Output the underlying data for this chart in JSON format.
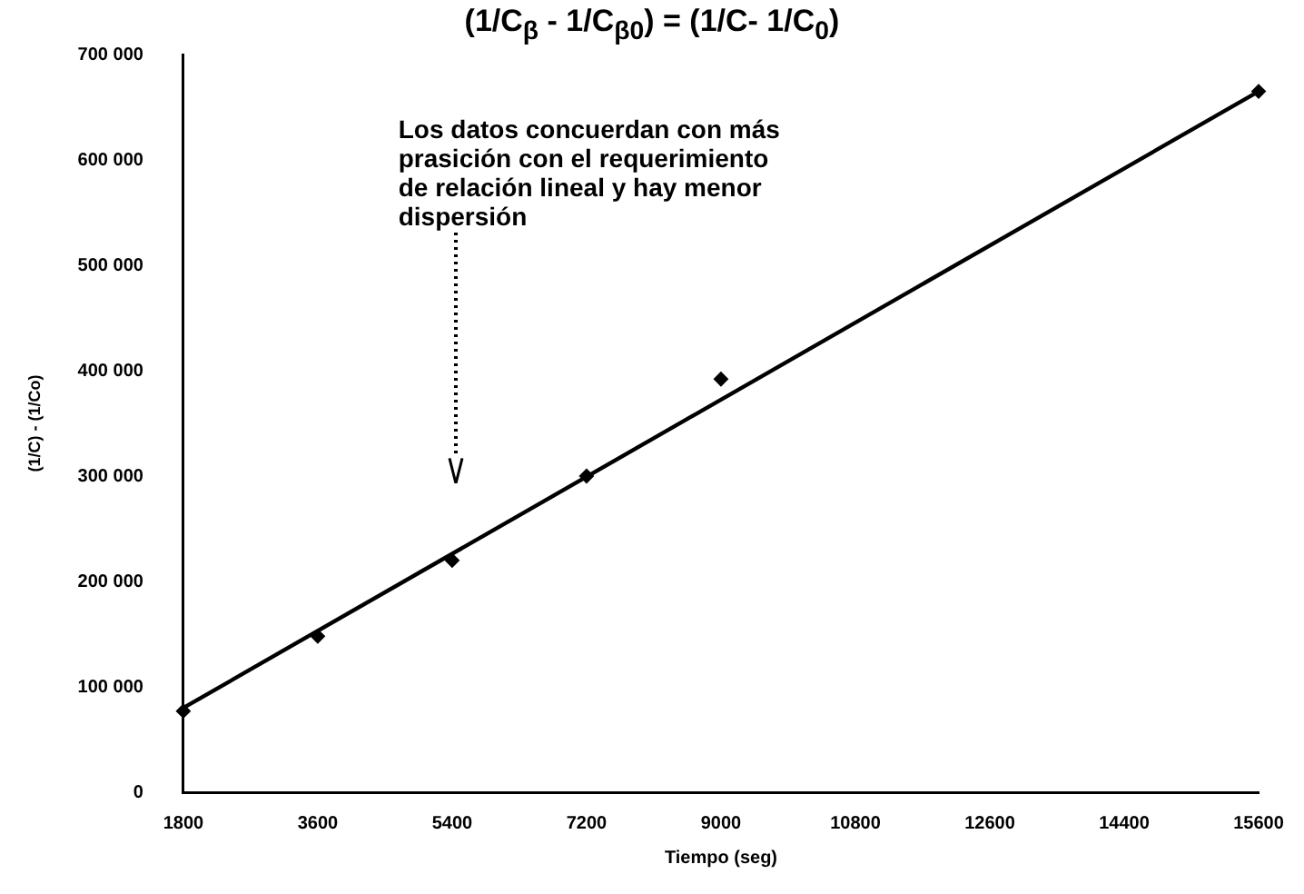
{
  "chart_data": {
    "type": "scatter",
    "title": "(1/C$_{β}$ - 1/C$_{β0}$) = (1/C- 1/C$_{0}$)",
    "xlabel": "Tiempo (seg)",
    "ylabel": "(1/C) - (1/Co)",
    "categories": [
      "1800",
      "3600",
      "5400",
      "7200",
      "9000",
      "10800",
      "12600",
      "14400",
      "15600"
    ],
    "series": [
      {
        "type": "scatter",
        "color": "#000000",
        "marker": "diamond",
        "values": [
          77000,
          148000,
          220000,
          300000,
          392000,
          null,
          null,
          null,
          665000
        ]
      },
      {
        "type": "line",
        "color": "#000000",
        "marker": "none",
        "line_style": "solid",
        "values": [
          80000,
          null,
          null,
          null,
          null,
          null,
          null,
          null,
          665000
        ]
      }
    ],
    "ylim": [
      0,
      700000
    ],
    "yticks": [
      {
        "value": 0,
        "label": "0"
      },
      {
        "value": 100000,
        "label": "100 000"
      },
      {
        "value": 200000,
        "label": "200 000"
      },
      {
        "value": 300000,
        "label": "300 000"
      },
      {
        "value": 400000,
        "label": "400 000"
      },
      {
        "value": 500000,
        "label": "500 000"
      },
      {
        "value": 600000,
        "label": "600 000"
      },
      {
        "value": 700000,
        "label": "700 000"
      }
    ],
    "grid": false,
    "legend": false,
    "annotations": [
      "Los datos concuerdan con más\nprasición con el requerimiento\nde relación lineal y hay menor\ndispersión"
    ]
  }
}
